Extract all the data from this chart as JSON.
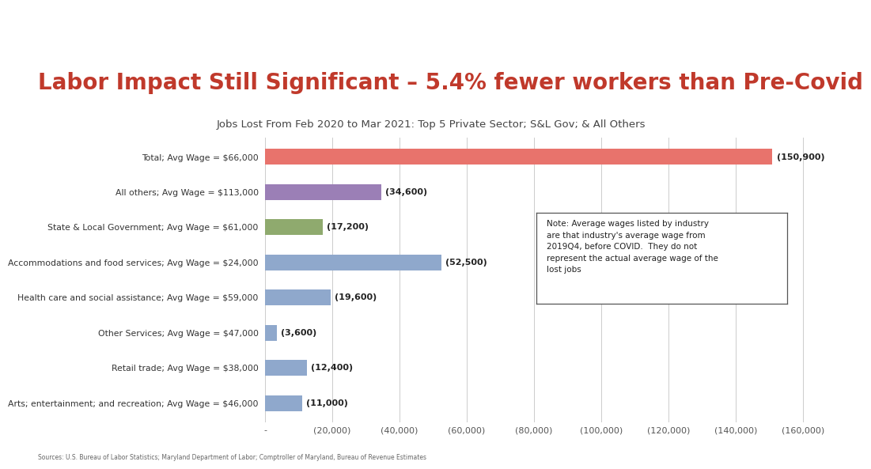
{
  "title": "Labor Impact Still Significant – 5.4% fewer workers than Pre-Covid",
  "subtitle": "Jobs Lost From Feb 2020 to Mar 2021: Top 5 Private Sector; S&L Gov; & All Others",
  "footer": "Sources: U.S. Bureau of Labor Statistics; Maryland Department of Labor; Comptroller of Maryland, Bureau of Revenue Estimates",
  "note": "Note: Average wages listed by industry\nare that industry's average wage from\n2019Q4, before COVID.  They do not\nrepresent the actual average wage of the\nlost jobs",
  "categories": [
    "Total; Avg Wage = $66,000",
    "All others; Avg Wage = $113,000",
    "State & Local Government; Avg Wage = $61,000",
    "Accommodations and food services; Avg Wage = $24,000",
    "Health care and social assistance; Avg Wage = $59,000",
    "Other Services; Avg Wage = $47,000",
    "Retail trade; Avg Wage = $38,000",
    "Arts; entertainment; and recreation; Avg Wage = $46,000"
  ],
  "values": [
    -150900,
    -34600,
    -17200,
    -52500,
    -19600,
    -3600,
    -12400,
    -11000
  ],
  "labels": [
    "(150,900)",
    "(34,600)",
    "(17,200)",
    "(52,500)",
    "(19,600)",
    "(3,600)",
    "(12,400)",
    "(11,000)"
  ],
  "colors": [
    "#e8736c",
    "#9b7fb6",
    "#8faa6e",
    "#8fa8cc",
    "#8fa8cc",
    "#8fa8cc",
    "#8fa8cc",
    "#8fa8cc"
  ],
  "title_color": "#c0392b",
  "subtitle_color": "#444444",
  "background_color": "#ffffff",
  "header_bg_color": "#7a8f8f",
  "xlim_left": 0,
  "xlim_right": -165000,
  "xticks": [
    0,
    -20000,
    -40000,
    -60000,
    -80000,
    -100000,
    -120000,
    -140000,
    -160000
  ],
  "xtick_labels": [
    "-",
    "(20,000)",
    "(40,000)",
    "(60,000)",
    "(80,000)",
    "(100,000)",
    "(120,000)",
    "(140,000)",
    "(160,000)"
  ],
  "grid_color": "#cccccc",
  "bar_height": 0.45
}
